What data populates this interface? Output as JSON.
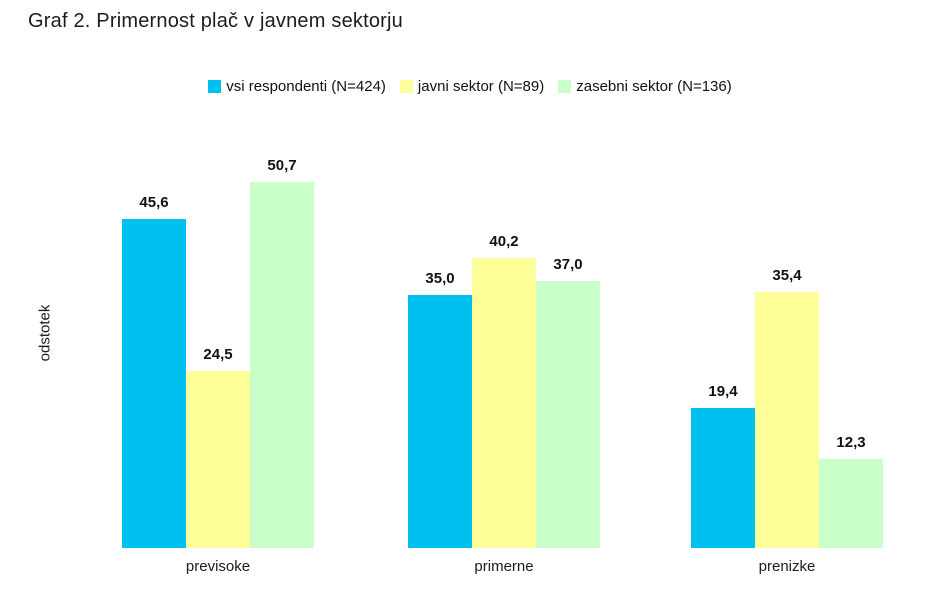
{
  "chart_data": {
    "type": "bar",
    "title": "Graf 2. Primernost plač v javnem sektorju",
    "ylabel": "odstotek",
    "xlabel": "",
    "ylim": [
      0,
      55
    ],
    "grid": false,
    "legend_position": "top-center",
    "value_label_decimal_style": "comma",
    "categories": [
      "previsoke",
      "primerne",
      "prenizke"
    ],
    "series": [
      {
        "name": "vsi respondenti (N=424)",
        "color": "#00c0f0",
        "values": [
          45.6,
          35.0,
          19.4
        ],
        "labels": [
          "45,6",
          "35,0",
          "19,4"
        ]
      },
      {
        "name": "javni sektor (N=89)",
        "color": "#ffff99",
        "values": [
          24.5,
          40.2,
          35.4
        ],
        "labels": [
          "24,5",
          "40,2",
          "35,4"
        ]
      },
      {
        "name": "zasebni sektor (N=136)",
        "color": "#c9ffc9",
        "values": [
          50.7,
          37.0,
          12.3
        ],
        "labels": [
          "50,7",
          "37,0",
          "12,3"
        ]
      }
    ]
  }
}
